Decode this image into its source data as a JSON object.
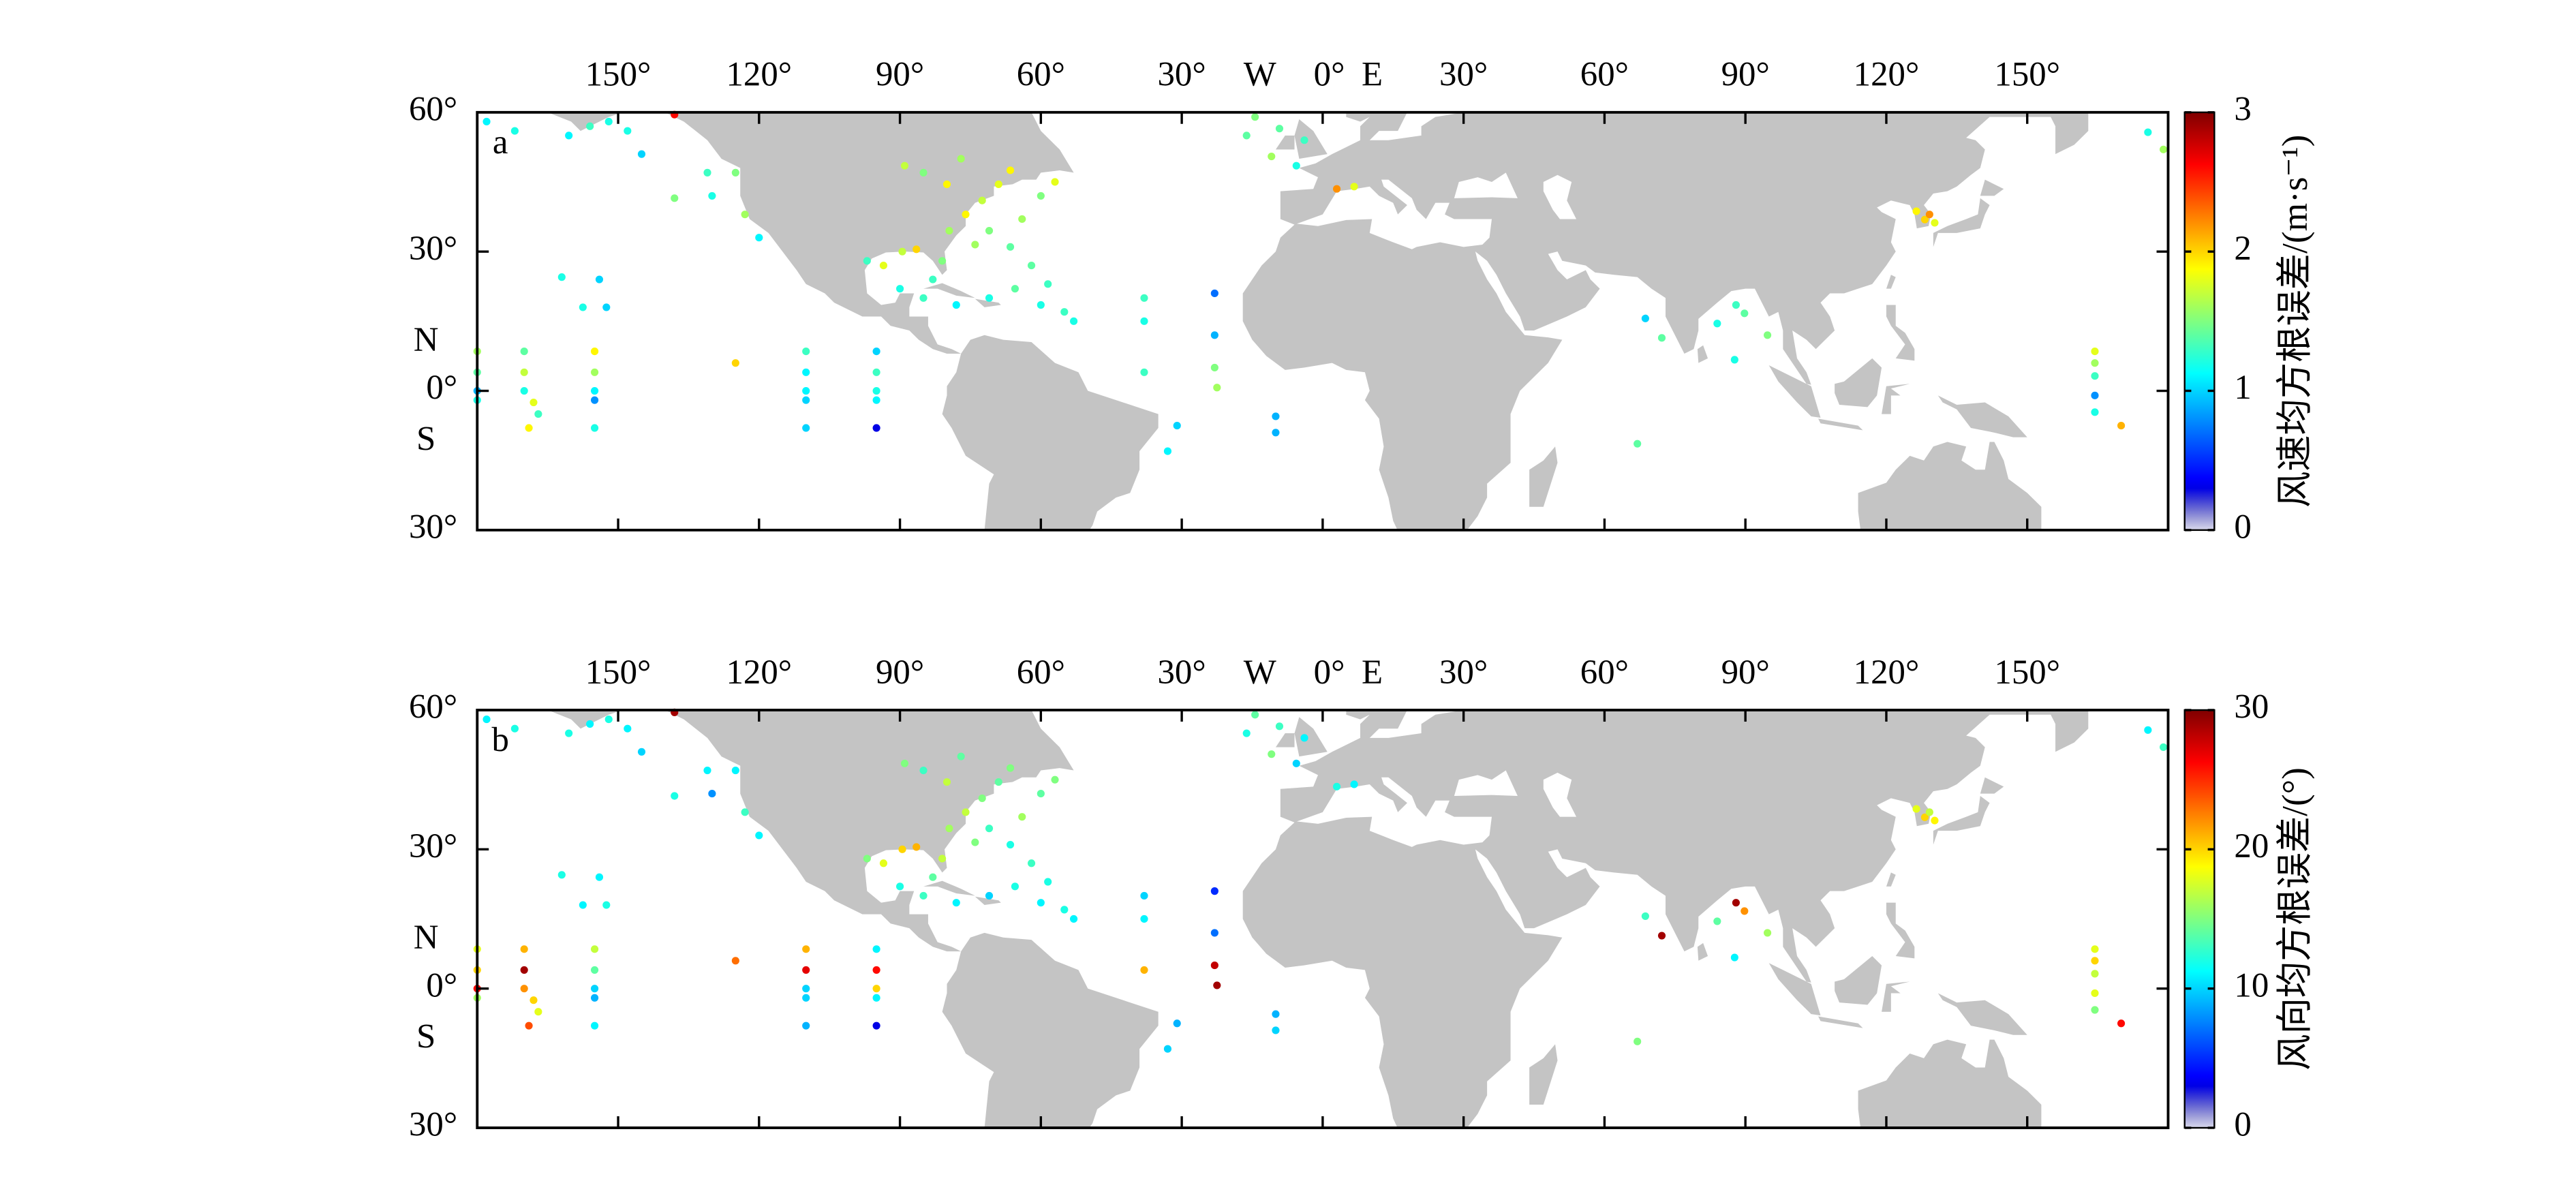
{
  "lon_lim": [
    -180,
    180
  ],
  "lat_lim": [
    -30,
    60
  ],
  "lon_ticks": [
    {
      "value": -150,
      "label": "150°"
    },
    {
      "value": -120,
      "label": "120°"
    },
    {
      "value": -90,
      "label": "90°"
    },
    {
      "value": -60,
      "label": "60°"
    },
    {
      "value": -30,
      "label": "30°"
    },
    {
      "value": 0,
      "label": "0°"
    },
    {
      "value": 30,
      "label": "30°"
    },
    {
      "value": 60,
      "label": "60°"
    },
    {
      "value": 90,
      "label": "90°"
    },
    {
      "value": 120,
      "label": "120°"
    },
    {
      "value": 150,
      "label": "150°"
    }
  ],
  "lat_ticks": [
    {
      "value": 60,
      "label": "60°"
    },
    {
      "value": 30,
      "label": "30°"
    },
    {
      "value": 0,
      "label": "0°"
    },
    {
      "value": -30,
      "label": "30°"
    }
  ],
  "hemisphere_labels": {
    "west": "W",
    "east": "E",
    "north": "N",
    "south": "S"
  },
  "stations": {
    "lon": [
      -178,
      -172,
      -160.5,
      -156,
      -152,
      -148,
      -145,
      -138,
      -131,
      -130,
      -125,
      -123,
      -120,
      -162,
      -154,
      -157.5,
      -152.5,
      -180,
      -180,
      -180,
      -180,
      -170,
      -170,
      -170,
      -168,
      -167,
      -169,
      -155,
      -155,
      -155,
      -155,
      -155,
      -125,
      -110,
      -110,
      -110,
      -110,
      -110,
      -95,
      -95,
      -95,
      -95,
      -95,
      -97,
      -93.5,
      -89.5,
      -86.5,
      -81,
      -83,
      -79.5,
      -76,
      -72.5,
      -69,
      -66.5,
      -74,
      -71,
      -66.5,
      -64,
      -60,
      -57,
      -89,
      -85,
      -80,
      -77,
      -90,
      -85,
      -78,
      -71,
      -65.5,
      -60,
      -55,
      -62,
      -58.5,
      -53,
      -38,
      -38,
      -38,
      -23,
      -23,
      -23,
      -22.5,
      -31,
      -33,
      -10,
      -10,
      -14.4,
      -16.2,
      -10.9,
      -5.6,
      -3.9,
      -9.2,
      3,
      6.7,
      68.7,
      72.2,
      84,
      88,
      89.8,
      87.7,
      94.7,
      67,
      126.4,
      128.2,
      129.2,
      130.3,
      164.4,
      164.4,
      164.4,
      164.4,
      164.4,
      170,
      175.7,
      179,
      -138
    ],
    "lat": [
      58,
      56,
      55,
      57,
      58,
      56,
      51,
      41.5,
      47,
      42,
      47,
      38,
      33,
      24.5,
      24,
      18,
      18,
      8.5,
      4,
      0,
      -2,
      8.5,
      4,
      0,
      -2.5,
      -5,
      -8,
      8.5,
      4,
      0,
      -2,
      -8,
      6,
      8.5,
      4,
      0,
      -2,
      -8,
      8.5,
      4,
      0,
      -2,
      -8,
      28,
      27,
      30,
      30.5,
      28,
      24,
      34.5,
      38,
      41,
      44.5,
      47.5,
      31.5,
      34.5,
      31,
      37,
      42,
      45,
      48.5,
      47,
      44.5,
      50,
      22,
      20,
      18.5,
      20,
      22,
      18.5,
      17,
      27,
      23,
      15,
      20,
      15,
      4,
      21,
      12,
      5,
      0.7,
      -7.5,
      -13,
      -5.5,
      -9,
      59,
      55,
      50.5,
      48.5,
      54,
      56.5,
      43.5,
      44,
      15.6,
      11.4,
      14.5,
      18.5,
      16.7,
      6.7,
      12,
      -11.4,
      38.7,
      36.9,
      38,
      36.2,
      8.5,
      6,
      3.2,
      -1,
      -4.6,
      -7.5,
      55.7,
      52,
      59.5
    ]
  },
  "panels": [
    {
      "label": "a",
      "colorbar_label": "风速均方根误差/(m·s⁻¹)",
      "clim": [
        0,
        3
      ],
      "cticks": [
        0,
        1,
        2,
        3
      ],
      "values": [
        1.1,
        1.2,
        1.1,
        1.3,
        1.2,
        1.2,
        1.0,
        1.5,
        1.3,
        1.2,
        1.5,
        1.6,
        1.1,
        1.2,
        1.0,
        1.2,
        1.0,
        1.6,
        1.4,
        0.9,
        1.2,
        1.4,
        1.7,
        1.2,
        1.8,
        1.3,
        1.9,
        1.9,
        1.6,
        1.1,
        0.8,
        1.2,
        2.0,
        1.3,
        1.1,
        1.1,
        1.0,
        1.0,
        1.0,
        1.3,
        1.2,
        1.1,
        0.3,
        1.3,
        1.8,
        1.7,
        2.0,
        1.5,
        1.3,
        1.6,
        1.9,
        1.7,
        1.8,
        1.9,
        1.6,
        1.5,
        1.4,
        1.6,
        1.5,
        1.8,
        1.7,
        1.5,
        1.9,
        1.6,
        1.2,
        1.3,
        1.1,
        1.2,
        1.4,
        1.2,
        1.3,
        1.4,
        1.3,
        1.2,
        1.3,
        1.2,
        1.3,
        0.7,
        0.9,
        1.5,
        1.6,
        1.0,
        1.1,
        0.9,
        0.9,
        1.5,
        1.4,
        1.6,
        1.2,
        1.3,
        1.4,
        2.2,
        1.8,
        1.0,
        1.4,
        1.2,
        1.3,
        1.4,
        1.2,
        1.5,
        1.4,
        1.9,
        2.0,
        2.2,
        1.8,
        1.8,
        1.6,
        1.3,
        0.8,
        1.2,
        2.1,
        1.2,
        1.6,
        2.6
      ]
    },
    {
      "label": "b",
      "colorbar_label": "风向均方根误差/(°)",
      "clim": [
        0,
        30
      ],
      "cticks": [
        0,
        10,
        20,
        30
      ],
      "values": [
        11,
        12,
        12,
        11,
        12,
        11,
        10,
        12,
        11,
        8,
        11,
        13,
        11,
        12,
        11,
        11,
        12,
        18,
        20,
        26,
        16,
        21,
        29,
        22,
        20,
        18,
        24,
        17,
        14,
        10,
        9,
        11,
        23,
        21,
        27,
        10,
        10,
        9,
        11,
        26,
        20,
        11,
        3,
        15,
        18,
        20,
        21,
        17,
        14,
        16,
        17,
        15,
        14,
        15,
        15,
        13,
        12,
        16,
        14,
        15,
        15,
        13,
        17,
        14,
        12,
        13,
        11,
        10,
        12,
        11,
        12,
        13,
        12,
        11,
        10,
        11,
        21,
        5,
        7,
        28,
        29,
        9,
        10,
        9,
        10,
        14,
        12,
        15,
        10,
        11,
        13,
        12,
        11,
        13,
        29,
        14,
        29,
        22,
        11,
        16,
        15,
        18,
        20,
        17,
        19,
        18,
        20,
        17,
        18,
        15,
        26,
        11,
        13,
        29
      ]
    }
  ]
}
